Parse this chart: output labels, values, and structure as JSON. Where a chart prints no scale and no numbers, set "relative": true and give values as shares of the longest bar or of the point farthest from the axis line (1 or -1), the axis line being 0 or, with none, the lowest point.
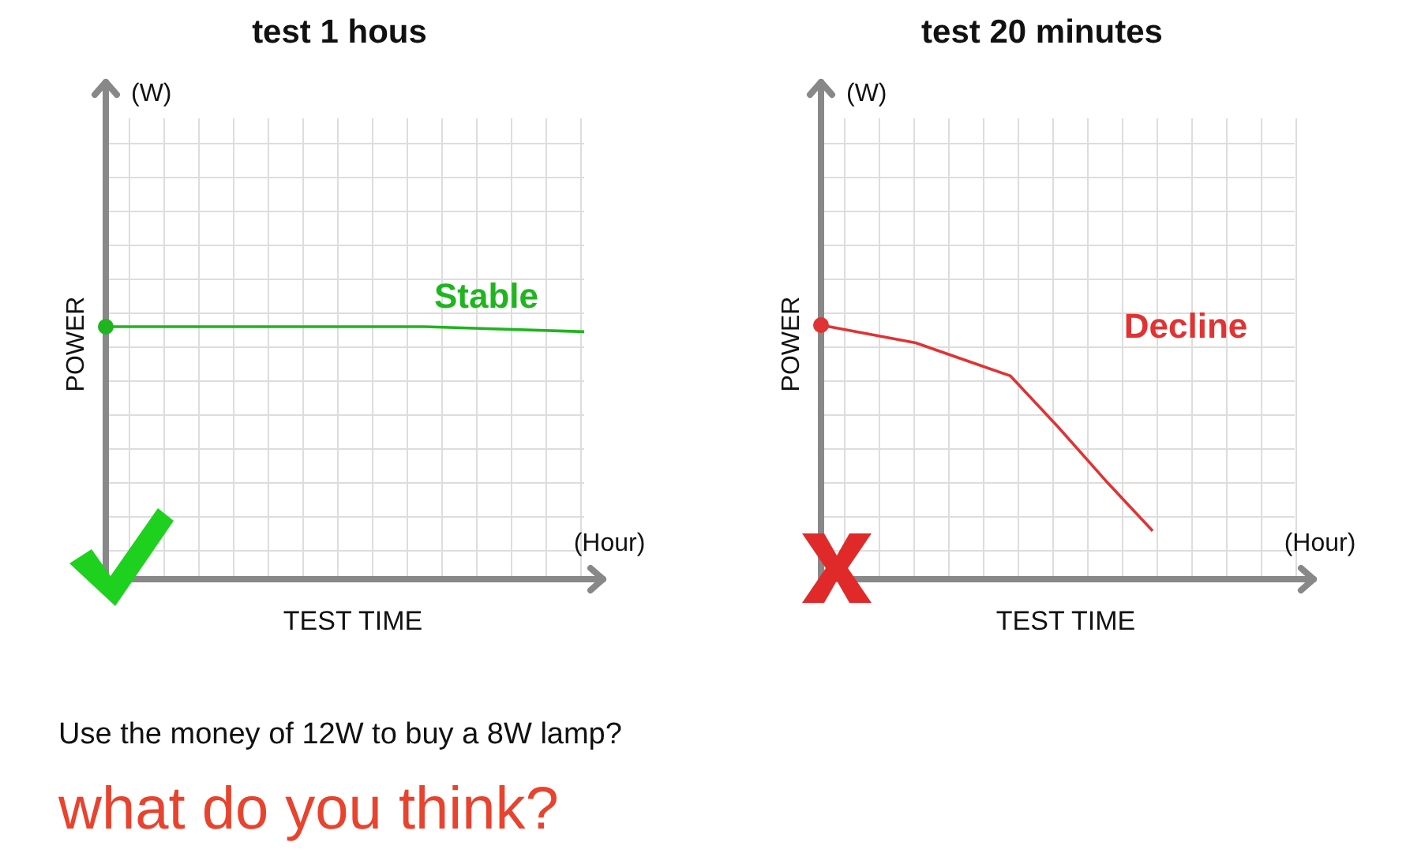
{
  "chart_data": [
    {
      "type": "line",
      "title": "test 1 hous",
      "xlabel": "TEST  TIME",
      "ylabel": "POWER",
      "relative": true,
      "grid": true,
      "annotations": [
        "(W)",
        "(Hour)"
      ],
      "categories": [
        null,
        null,
        null,
        null
      ],
      "series": [
        {
          "name": "Stable",
          "color": "#1fb51f",
          "values": [
            1,
            1,
            1,
            0.98
          ]
        }
      ]
    },
    {
      "type": "line",
      "title": "test 20 minutes",
      "xlabel": "TEST  TIME",
      "ylabel": "POWER",
      "relative": true,
      "grid": true,
      "annotations": [
        "(W)",
        "(Hour)"
      ],
      "categories": [
        null,
        null,
        null,
        null,
        null,
        null,
        null,
        null,
        null,
        null,
        null
      ],
      "series": [
        {
          "name": "Decline",
          "color": "#e03333",
          "values": [
            1,
            0.965,
            0.93,
            0.865,
            0.8,
            0.6,
            0.39,
            0.19,
            null,
            null,
            null
          ]
        }
      ]
    },
    {
      "type": "other",
      "annotations": [
        "Use the money of 12W to buy a 8W lamp?",
        "what do you think?"
      ]
    }
  ]
}
